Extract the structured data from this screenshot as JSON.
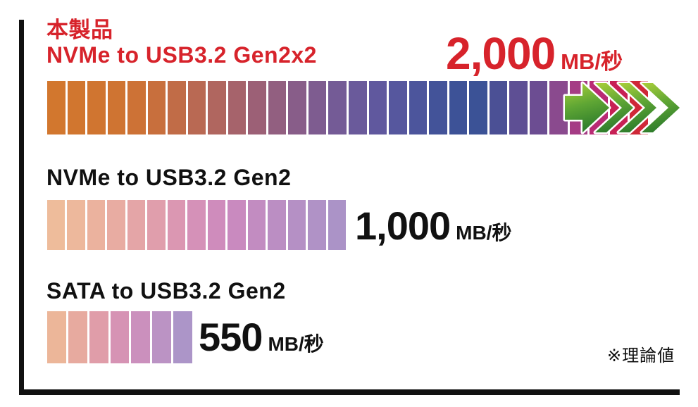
{
  "palette": {
    "accent_red": "#d7232b",
    "text_black": "#111111",
    "axis_black": "#111111",
    "gap_white": "#ffffff",
    "arrow_green_light": "#aacf3b",
    "arrow_green_mid": "#5fa634",
    "arrow_green_dark": "#2f7d2c",
    "arrow_outline": "#ffffff"
  },
  "note": "※理論値",
  "chart_data": {
    "type": "bar",
    "orientation": "horizontal",
    "unit": "MB/秒",
    "note": "※理論値",
    "categories": [
      "NVMe to USB3.2 Gen2x2",
      "NVMe to USB3.2 Gen2",
      "SATA to USB3.2 Gen2"
    ],
    "values": [
      2000,
      1000,
      550
    ],
    "series": [
      {
        "product_badge": "本製品",
        "label": "NVMe to USB3.2 Gen2x2",
        "value": 2000,
        "value_label": "2,000",
        "unit": "MB/秒",
        "label_color": "#d7232b",
        "has_speed_arrows": true,
        "segment_colors": [
          "#d2772e",
          "#d1762f",
          "#d07530",
          "#cf7432",
          "#cd7236",
          "#c86f3d",
          "#c16c47",
          "#b96953",
          "#b0665f",
          "#a6636b",
          "#9c6076",
          "#925f80",
          "#885d89",
          "#7e5c90",
          "#745b96",
          "#6a5a9b",
          "#60589e",
          "#56579e",
          "#4c559c",
          "#435399",
          "#3d5297",
          "#3b5296",
          "#4b5095",
          "#5e4f94",
          "#6c4d92",
          "#8a4a8e",
          "#a53c85",
          "#b92b74",
          "#c72055",
          "#cf2838"
        ]
      },
      {
        "product_badge": "",
        "label": "NVMe to USB3.2 Gen2",
        "value": 1000,
        "value_label": "1,000",
        "unit": "MB/秒",
        "label_color": "#111111",
        "has_speed_arrows": false,
        "segment_colors": [
          "#eebc9b",
          "#edb89c",
          "#ebb29e",
          "#e8aca2",
          "#e4a5a7",
          "#e09eac",
          "#db97b2",
          "#d591b8",
          "#cf8cbc",
          "#c98abf",
          "#c28cc1",
          "#bb8ec3",
          "#b590c5",
          "#b092c6",
          "#ab93c7"
        ]
      },
      {
        "product_badge": "",
        "label": "SATA to USB3.2 Gen2",
        "value": 550,
        "value_label": "550",
        "unit": "MB/秒",
        "label_color": "#111111",
        "has_speed_arrows": false,
        "segment_colors": [
          "#ecb699",
          "#e7aa9f",
          "#e09da9",
          "#d693b4",
          "#cb90bd",
          "#bb93c4",
          "#ac95c8"
        ]
      }
    ]
  }
}
